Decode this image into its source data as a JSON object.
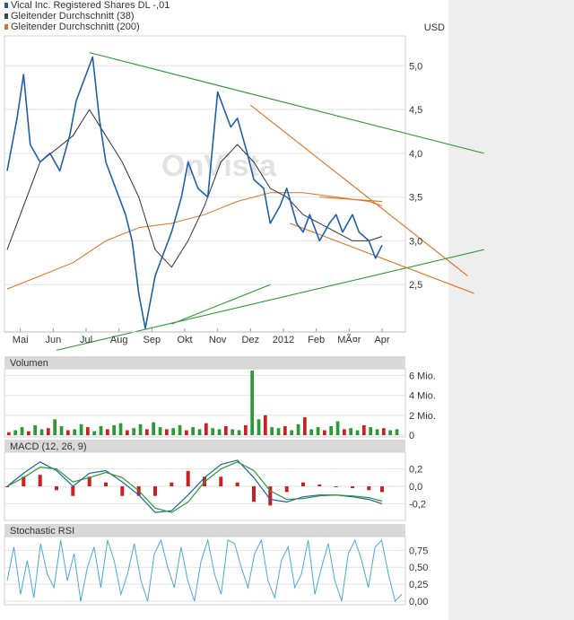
{
  "legend": [
    {
      "label": "Vical Inc. Registered Shares DL -,01",
      "color": "#1f5fa8"
    },
    {
      "label": "Gleitender Durchschnitt (38)",
      "color": "#444444"
    },
    {
      "label": "Gleitender Durchschnitt (200)",
      "color": "#e07020"
    }
  ],
  "currency": "USD",
  "watermark": "OnVista",
  "colors": {
    "price": "#1f5fa8",
    "sma38": "#333333",
    "sma200": "#e07020",
    "trend_green": "#2a9a35",
    "trend_orange": "#e07020",
    "vol_up": "#2a9a35",
    "vol_down": "#cc2020",
    "macd_line": "#1f5fa8",
    "signal_line": "#2a9a35",
    "macd_hist": "#cc2020",
    "rsi_line": "#4aa8d8",
    "panel_header": "#d9d9d9",
    "grid": "#e3e3e3",
    "right_strip": "#eeeeee"
  },
  "panels": {
    "volume_title": "Volumen",
    "macd_title": "MACD (12, 26, 9)",
    "rsi_title": "Stochastic RSI"
  },
  "chart_data": [
    {
      "type": "line",
      "title": "Vical Inc. Registered Shares DL -,01",
      "x_tick_labels": [
        "Mai",
        "Jun",
        "Jul",
        "Aug",
        "Sep",
        "Okt",
        "Nov",
        "Dez",
        "2012",
        "Feb",
        "MÃ¤r",
        "Apr"
      ],
      "y_tick_labels": [
        "5,0",
        "4,5",
        "4,0",
        "3,5",
        "3,0",
        "2,5"
      ],
      "y_ticks": [
        5.0,
        4.5,
        4.0,
        3.5,
        3.0,
        2.5
      ],
      "ylim": [
        2.0,
        5.3
      ],
      "xlim": [
        0,
        12
      ],
      "unit": "USD",
      "grid": true,
      "legend_position": "top-left",
      "series": [
        {
          "name": "Vical Inc. Registered Shares DL -,01",
          "x": [
            0,
            0.3,
            0.5,
            0.7,
            1.0,
            1.3,
            1.6,
            1.9,
            2.1,
            2.4,
            2.6,
            2.8,
            3.0,
            3.3,
            3.6,
            3.8,
            4.0,
            4.2,
            4.5,
            4.7,
            5.0,
            5.3,
            5.5,
            5.8,
            6.1,
            6.4,
            6.6,
            6.8,
            7.0,
            7.3,
            7.5,
            7.8,
            8.0,
            8.3,
            8.5,
            8.8,
            9.0,
            9.2,
            9.5,
            9.8,
            10.0,
            10.2,
            10.5,
            10.7,
            11.0,
            11.2,
            11.4
          ],
          "y": [
            3.8,
            4.4,
            4.9,
            4.1,
            3.9,
            4.0,
            3.8,
            4.2,
            4.6,
            4.9,
            5.1,
            4.4,
            3.9,
            3.6,
            3.3,
            3.0,
            2.4,
            2.0,
            2.6,
            2.8,
            3.1,
            3.5,
            3.9,
            3.6,
            3.5,
            4.7,
            4.5,
            4.3,
            4.4,
            4.0,
            3.7,
            3.6,
            3.2,
            3.4,
            3.6,
            3.2,
            3.1,
            3.3,
            3.0,
            3.2,
            3.3,
            3.1,
            3.3,
            3.1,
            3.0,
            2.8,
            2.95
          ]
        },
        {
          "name": "Gleitender Durchschnitt (38)",
          "x": [
            0,
            0.5,
            1.0,
            1.5,
            2.0,
            2.5,
            3.0,
            3.5,
            4.0,
            4.5,
            5.0,
            5.5,
            6.0,
            6.5,
            7.0,
            7.5,
            8.0,
            8.5,
            9.0,
            9.5,
            10.0,
            10.5,
            11.0,
            11.4
          ],
          "y": [
            2.9,
            3.4,
            3.9,
            4.05,
            4.2,
            4.5,
            4.2,
            3.9,
            3.5,
            2.9,
            2.7,
            3.0,
            3.4,
            3.9,
            4.1,
            3.9,
            3.6,
            3.5,
            3.3,
            3.2,
            3.1,
            3.0,
            3.0,
            3.05
          ]
        },
        {
          "name": "Gleitender Durchschnitt (200)",
          "x": [
            0,
            1.0,
            2.0,
            3.0,
            4.0,
            5.0,
            6.0,
            7.0,
            8.0,
            9.0,
            10.0,
            11.0,
            11.4
          ],
          "y": [
            2.45,
            2.6,
            2.75,
            3.0,
            3.15,
            3.2,
            3.3,
            3.45,
            3.55,
            3.55,
            3.5,
            3.45,
            3.4
          ]
        }
      ],
      "trendlines": [
        {
          "color": "green",
          "x": [
            2.5,
            14.5
          ],
          "y": [
            5.15,
            4.0
          ]
        },
        {
          "color": "green",
          "x": [
            1.5,
            14.5
          ],
          "y": [
            1.75,
            2.9
          ]
        },
        {
          "color": "green",
          "x": [
            5.0,
            8.0
          ],
          "y": [
            2.05,
            2.5
          ]
        },
        {
          "color": "orange",
          "x": [
            7.4,
            14.0
          ],
          "y": [
            4.55,
            2.6
          ]
        },
        {
          "color": "orange",
          "x": [
            8.6,
            14.2
          ],
          "y": [
            3.2,
            2.4
          ]
        },
        {
          "color": "orange",
          "x": [
            9.5,
            11.4
          ],
          "y": [
            3.5,
            3.45
          ]
        }
      ]
    },
    {
      "type": "bar",
      "title": "Volumen",
      "y_tick_labels": [
        "6 Mio.",
        "4 Mio.",
        "2 Mio.",
        "0"
      ],
      "y_ticks": [
        6,
        4,
        2,
        0
      ],
      "ylim": [
        0,
        6.5
      ],
      "unit": "Mio.",
      "values": [
        0.3,
        0.5,
        0.8,
        0.4,
        1.0,
        0.6,
        0.7,
        1.6,
        0.9,
        0.5,
        0.6,
        1.1,
        0.8,
        0.4,
        0.9,
        0.6,
        1.0,
        1.2,
        0.5,
        0.7,
        1.1,
        0.6,
        1.3,
        0.8,
        0.6,
        0.7,
        1.0,
        0.5,
        0.8,
        0.6,
        1.2,
        0.7,
        0.6,
        0.9,
        0.6,
        0.5,
        1.0,
        6.5,
        1.6,
        2.0,
        0.8,
        0.7,
        0.9,
        0.5,
        1.1,
        1.8,
        0.6,
        0.8,
        0.5,
        0.9,
        1.4,
        0.6,
        0.7,
        0.5,
        1.0,
        0.8,
        0.6,
        0.7,
        0.5,
        0.6
      ]
    },
    {
      "type": "line",
      "title": "MACD (12, 26, 9)",
      "y_tick_labels": [
        "0,2",
        "0,0",
        "-0,2"
      ],
      "y_ticks": [
        0.2,
        0.0,
        -0.2
      ],
      "ylim": [
        -0.35,
        0.35
      ],
      "series": [
        {
          "name": "MACD (12, 26, 9)",
          "x": [
            0,
            0.5,
            1.0,
            1.5,
            2.0,
            2.5,
            3.0,
            3.5,
            4.0,
            4.5,
            5.0,
            5.5,
            6.0,
            6.5,
            7.0,
            7.5,
            8.0,
            8.5,
            9.0,
            9.5,
            10.0,
            10.5,
            11.0,
            11.4
          ],
          "y": [
            0.0,
            0.15,
            0.28,
            0.18,
            0.0,
            0.15,
            0.18,
            0.05,
            -0.1,
            -0.3,
            -0.28,
            -0.1,
            0.1,
            0.25,
            0.3,
            0.1,
            -0.15,
            -0.18,
            -0.12,
            -0.1,
            -0.1,
            -0.12,
            -0.15,
            -0.2
          ]
        },
        {
          "name": "Signal",
          "x": [
            0,
            0.5,
            1.0,
            1.5,
            2.0,
            2.5,
            3.0,
            3.5,
            4.0,
            4.5,
            5.0,
            5.5,
            6.0,
            6.5,
            7.0,
            7.5,
            8.0,
            8.5,
            9.0,
            9.5,
            10.0,
            10.5,
            11.0,
            11.4
          ],
          "y": [
            0.0,
            0.1,
            0.22,
            0.2,
            0.05,
            0.1,
            0.16,
            0.1,
            -0.05,
            -0.25,
            -0.3,
            -0.18,
            0.05,
            0.2,
            0.28,
            0.18,
            -0.05,
            -0.15,
            -0.14,
            -0.11,
            -0.1,
            -0.11,
            -0.13,
            -0.17
          ]
        }
      ]
    },
    {
      "type": "line",
      "title": "Stochastic RSI",
      "y_tick_labels": [
        "0,75",
        "0,50",
        "0,25",
        "0,00"
      ],
      "y_ticks": [
        0.75,
        0.5,
        0.25,
        0.0
      ],
      "ylim": [
        0,
        0.9
      ],
      "series": [
        {
          "name": "Stochastic RSI",
          "y": [
            0.3,
            0.8,
            0.1,
            0.6,
            0.05,
            0.85,
            0.4,
            0.2,
            0.9,
            0.3,
            0.7,
            0.0,
            0.5,
            0.8,
            0.2,
            0.9,
            0.6,
            0.1,
            0.4,
            0.85,
            0.3,
            0.0,
            0.7,
            0.9,
            0.5,
            0.2,
            0.8,
            0.3,
            0.0,
            0.6,
            0.9,
            0.4,
            0.1,
            0.9,
            0.85,
            0.5,
            0.2,
            0.7,
            0.9,
            0.3,
            0.05,
            0.6,
            0.8,
            0.2,
            0.4,
            0.9,
            0.1,
            0.5,
            0.85,
            0.3,
            0.0,
            0.7,
            0.9,
            0.6,
            0.2,
            0.8,
            0.9,
            0.4,
            0.0,
            0.1
          ]
        }
      ]
    }
  ]
}
